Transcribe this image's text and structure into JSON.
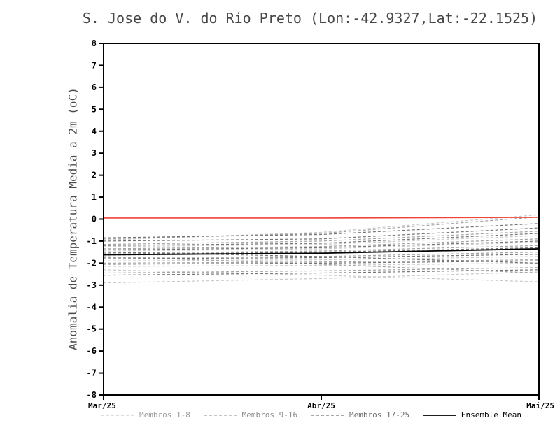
{
  "header": {
    "title": "S. Jose do V. do Rio Preto (Lon:-42.9327,Lat:-22.1525)"
  },
  "axes": {
    "ylabel": "Anomalia de Temperatura Media a 2m (oC)"
  },
  "legend": [
    {
      "label": "Membros 1-8",
      "color": "#c9c9c9",
      "text_color": "#9a9a9a",
      "dashed": true
    },
    {
      "label": "Membros 9-16",
      "color": "#a3a3a3",
      "text_color": "#8a8a8a",
      "dashed": true
    },
    {
      "label": "Membros 17-25",
      "color": "#747474",
      "text_color": "#6e6e6e",
      "dashed": true
    },
    {
      "label": "Ensemble Mean",
      "color": "#000000",
      "text_color": "#000000",
      "dashed": false
    }
  ],
  "chart_data": {
    "type": "line",
    "title": "S. Jose do V. do Rio Preto (Lon:-42.9327,Lat:-22.1525)",
    "xlabel": "",
    "ylabel": "Anomalia de Temperatura Media a 2m (oC)",
    "ylim": [
      -8,
      8
    ],
    "y_ticks": [
      -8,
      -7,
      -6,
      -5,
      -4,
      -3,
      -2,
      -1,
      0,
      1,
      2,
      3,
      4,
      5,
      6,
      7,
      8
    ],
    "x_ticks": [
      {
        "label": "Mar/25",
        "pos": 0
      },
      {
        "label": "Abr/25",
        "pos": 0.5
      },
      {
        "label": "Mai/25",
        "pos": 1
      }
    ],
    "grid": false,
    "legend_position": "bottom",
    "reference_line": {
      "name": "zero-climatology",
      "color": "#f04338",
      "values": [
        0.05,
        0.05,
        0.08
      ]
    },
    "ensemble_mean": {
      "name": "Ensemble Mean",
      "color": "#000000",
      "values": [
        -1.62,
        -1.55,
        -1.35
      ]
    },
    "groups": [
      {
        "name": "Membros 1-8",
        "color": "#c9c9c9",
        "dashed": true,
        "members": [
          [
            -0.95,
            -0.6,
            0.2
          ],
          [
            -1.25,
            -1.15,
            -0.75
          ],
          [
            -1.45,
            -1.35,
            -1.05
          ],
          [
            -1.65,
            -1.55,
            -1.35
          ],
          [
            -1.9,
            -1.85,
            -1.7
          ],
          [
            -2.15,
            -2.1,
            -2.0
          ],
          [
            -2.3,
            -2.55,
            -2.85
          ],
          [
            -2.9,
            -2.7,
            -2.4
          ]
        ]
      },
      {
        "name": "Membros 9-16",
        "color": "#a3a3a3",
        "dashed": true,
        "members": [
          [
            -0.9,
            -0.65,
            0.1
          ],
          [
            -1.15,
            -1.0,
            -0.55
          ],
          [
            -1.35,
            -1.25,
            -0.9
          ],
          [
            -1.55,
            -1.45,
            -1.2
          ],
          [
            -1.75,
            -1.7,
            -1.5
          ],
          [
            -2.0,
            -1.95,
            -1.85
          ],
          [
            -2.45,
            -2.35,
            -2.2
          ],
          [
            -1.7,
            -2.05,
            -2.45
          ]
        ]
      },
      {
        "name": "Membros 17-25",
        "color": "#747474",
        "dashed": true,
        "members": [
          [
            -0.85,
            -0.7,
            -0.2
          ],
          [
            -1.0,
            -0.9,
            -0.4
          ],
          [
            -1.2,
            -1.1,
            -0.65
          ],
          [
            -1.4,
            -1.3,
            -1.0
          ],
          [
            -1.6,
            -1.5,
            -1.3
          ],
          [
            -1.8,
            -1.75,
            -1.6
          ],
          [
            -2.05,
            -2.0,
            -1.9
          ],
          [
            -1.5,
            -1.7,
            -2.0
          ],
          [
            -2.55,
            -2.45,
            -2.3
          ]
        ]
      }
    ]
  }
}
